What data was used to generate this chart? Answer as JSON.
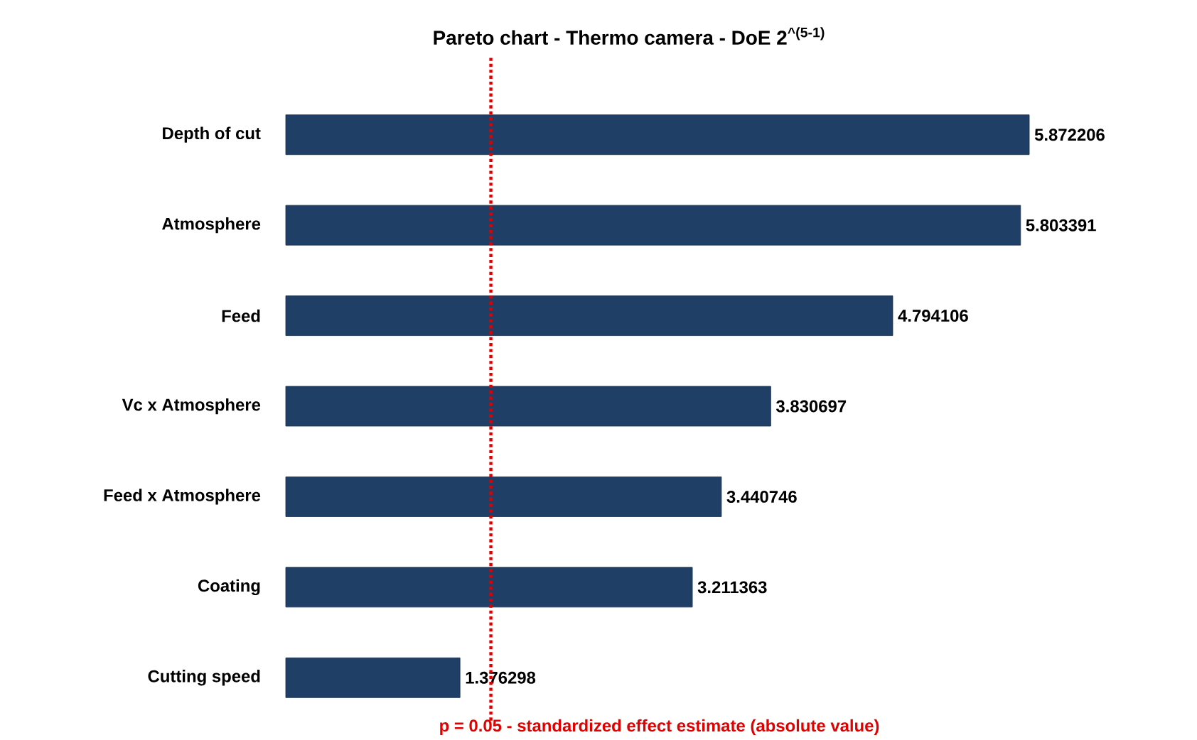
{
  "chart_data": {
    "type": "bar",
    "orientation": "horizontal",
    "title": "Pareto chart - Thermo camera - DoE 2$^{^(5-1)}$",
    "categories": [
      "Depth of cut",
      "Atmosphere",
      "Feed",
      "Vc x Atmosphere",
      "Feed x Atmosphere",
      "Coating",
      "Cutting speed"
    ],
    "values": [
      5.872206,
      5.803391,
      4.794106,
      3.830697,
      3.440746,
      3.211363,
      1.376298
    ],
    "value_labels": [
      "5.872206",
      "5.803391",
      "4.794106",
      "3.830697",
      "3.440746",
      "3.211363",
      "1.376298"
    ],
    "color": "#1f3f66",
    "ref_lines": [
      {
        "axis": "x",
        "value": 1.62,
        "color": "#e00000",
        "line_style": "dotted"
      }
    ],
    "annotations": [
      "p = 0.05 - standardized effect estimate (absolute value)"
    ]
  }
}
